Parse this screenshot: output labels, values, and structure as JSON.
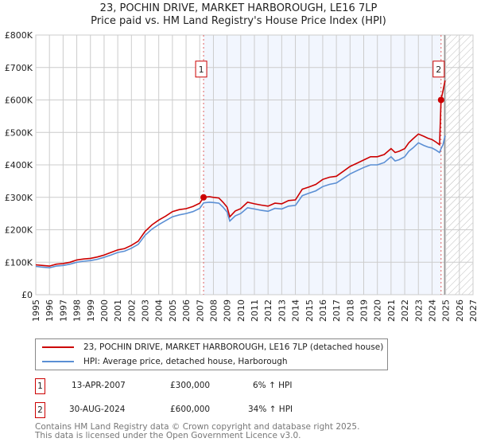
{
  "chart_data": {
    "type": "line",
    "title": "23, POCHIN DRIVE, MARKET HARBOROUGH, LE16 7LP",
    "subtitle": "Price paid vs. HM Land Registry's House Price Index (HPI)",
    "xlim": [
      1995,
      2027
    ],
    "ylim": [
      0,
      800000
    ],
    "x_ticks": [
      "1995",
      "1996",
      "1997",
      "1998",
      "1999",
      "2000",
      "2001",
      "2002",
      "2003",
      "2004",
      "2005",
      "2006",
      "2007",
      "2008",
      "2009",
      "2010",
      "2011",
      "2012",
      "2013",
      "2014",
      "2015",
      "2016",
      "2017",
      "2018",
      "2019",
      "2020",
      "2021",
      "2022",
      "2023",
      "2024",
      "2025",
      "2026",
      "2027"
    ],
    "y_ticks": [
      {
        "value": 0,
        "label": "£0"
      },
      {
        "value": 100000,
        "label": "£100K"
      },
      {
        "value": 200000,
        "label": "£200K"
      },
      {
        "value": 300000,
        "label": "£300K"
      },
      {
        "value": 400000,
        "label": "£400K"
      },
      {
        "value": 500000,
        "label": "£500K"
      },
      {
        "value": 600000,
        "label": "£600K"
      },
      {
        "value": 700000,
        "label": "£700K"
      },
      {
        "value": 800000,
        "label": "£800K"
      }
    ],
    "grid": true,
    "series": [
      {
        "name": "23, POCHIN DRIVE, MARKET HARBOROUGH, LE16 7LP (detached house)",
        "color": "#cc0000",
        "x": [
          1995,
          1995.5,
          1996,
          1996.5,
          1997,
          1997.5,
          1998,
          1998.5,
          1999,
          1999.5,
          2000,
          2000.5,
          2001,
          2001.5,
          2002,
          2002.5,
          2003,
          2003.5,
          2004,
          2004.5,
          2005,
          2005.5,
          2006,
          2006.5,
          2007,
          2007.28,
          2007.7,
          2008,
          2008.4,
          2008.7,
          2009.0,
          2009.2,
          2009.6,
          2010,
          2010.5,
          2011,
          2011.5,
          2012,
          2012.5,
          2013,
          2013.5,
          2014,
          2014.5,
          2015,
          2015.5,
          2016,
          2016.5,
          2017,
          2017.5,
          2018,
          2018.5,
          2019,
          2019.5,
          2020,
          2020.5,
          2021,
          2021.3,
          2021.6,
          2022,
          2022.3,
          2022.6,
          2023,
          2023.4,
          2023.7,
          2024,
          2024.3,
          2024.55,
          2024.66,
          2024.8,
          2024.95
        ],
        "y": [
          92000,
          90000,
          88000,
          94000,
          96000,
          100000,
          107000,
          110000,
          112000,
          116000,
          122000,
          130000,
          138000,
          142000,
          152000,
          165000,
          195000,
          215000,
          230000,
          242000,
          256000,
          262000,
          265000,
          272000,
          282000,
          300000,
          302000,
          300000,
          298000,
          285000,
          270000,
          240000,
          258000,
          265000,
          285000,
          280000,
          276000,
          273000,
          282000,
          280000,
          290000,
          292000,
          325000,
          332000,
          340000,
          355000,
          362000,
          365000,
          380000,
          395000,
          405000,
          415000,
          425000,
          425000,
          432000,
          450000,
          438000,
          442000,
          450000,
          468000,
          480000,
          495000,
          488000,
          482000,
          478000,
          470000,
          462000,
          600000,
          628000,
          660000
        ]
      },
      {
        "name": "HPI: Average price, detached house, Harborough",
        "color": "#5b8fd4",
        "x": [
          1995,
          1995.5,
          1996,
          1996.5,
          1997,
          1997.5,
          1998,
          1998.5,
          1999,
          1999.5,
          2000,
          2000.5,
          2001,
          2001.5,
          2002,
          2002.5,
          2003,
          2003.5,
          2004,
          2004.5,
          2005,
          2005.5,
          2006,
          2006.5,
          2007,
          2007.28,
          2007.7,
          2008,
          2008.4,
          2008.7,
          2009.0,
          2009.2,
          2009.6,
          2010,
          2010.5,
          2011,
          2011.5,
          2012,
          2012.5,
          2013,
          2013.5,
          2014,
          2014.5,
          2015,
          2015.5,
          2016,
          2016.5,
          2017,
          2017.5,
          2018,
          2018.5,
          2019,
          2019.5,
          2020,
          2020.5,
          2021,
          2021.3,
          2021.6,
          2022,
          2022.3,
          2022.6,
          2023,
          2023.4,
          2023.7,
          2024,
          2024.3,
          2024.55,
          2024.66,
          2024.8,
          2024.95
        ],
        "y": [
          87000,
          85000,
          83000,
          88000,
          90000,
          94000,
          100000,
          103000,
          105000,
          109000,
          115000,
          122000,
          130000,
          134000,
          143000,
          155000,
          183000,
          202000,
          216000,
          228000,
          240000,
          246000,
          250000,
          256000,
          266000,
          283000,
          285000,
          284000,
          282000,
          270000,
          255000,
          227000,
          243000,
          250000,
          268000,
          264000,
          260000,
          257000,
          266000,
          264000,
          273000,
          275000,
          305000,
          313000,
          320000,
          333000,
          340000,
          344000,
          358000,
          372000,
          382000,
          392000,
          400000,
          400000,
          407000,
          425000,
          412000,
          416000,
          425000,
          442000,
          452000,
          468000,
          460000,
          455000,
          452000,
          445000,
          438000,
          450000,
          462000,
          490000
        ]
      }
    ],
    "shaded_region": [
      2007.28,
      2024.66
    ],
    "hatched_from": 2025.0,
    "sales": [
      {
        "marker": "1",
        "x": 2007.28,
        "value": 300000,
        "date": "13-APR-2007",
        "price": "£300,000",
        "delta": "6% ↑ HPI"
      },
      {
        "marker": "2",
        "x": 2024.66,
        "value": 600000,
        "date": "30-AUG-2024",
        "price": "£600,000",
        "delta": "34% ↑ HPI"
      }
    ],
    "legend_position": "below"
  },
  "title_line1": "23, POCHIN DRIVE, MARKET HARBOROUGH, LE16 7LP",
  "title_line2": "Price paid vs. HM Land Registry's House Price Index (HPI)",
  "legend": {
    "property": "23, POCHIN DRIVE, MARKET HARBOROUGH, LE16 7LP (detached house)",
    "hpi": "HPI: Average price, detached house, Harborough"
  },
  "footer": {
    "line1": "Contains HM Land Registry data © Crown copyright and database right 2025.",
    "line2": "This data is licensed under the Open Government Licence v3.0."
  }
}
